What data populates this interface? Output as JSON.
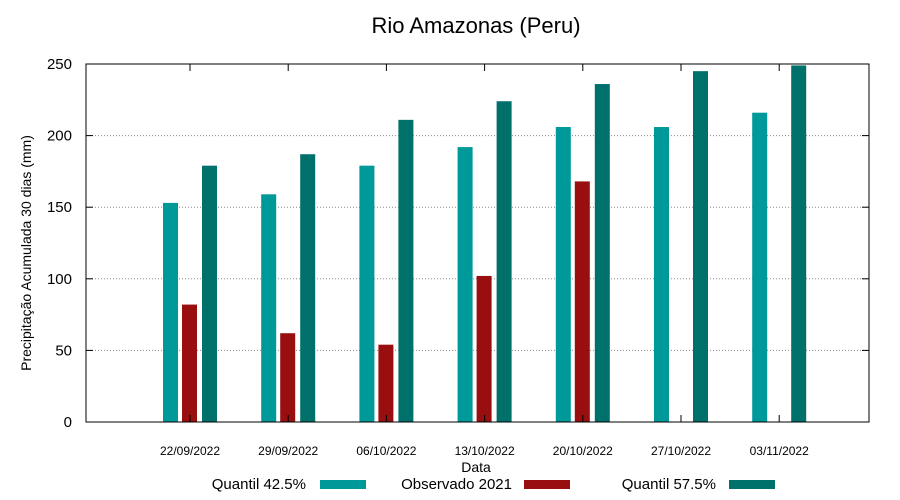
{
  "chart_data": {
    "type": "bar",
    "title": "Rio Amazonas (Peru)",
    "xlabel": "Data",
    "ylabel": "Precipitação Acumulada 30 dias (mm)",
    "ylim": [
      0,
      250
    ],
    "yticks": [
      0,
      50,
      100,
      150,
      200,
      250
    ],
    "grid": true,
    "legend_position": "bottom",
    "categories": [
      "22/09/2022",
      "29/09/2022",
      "06/10/2022",
      "13/10/2022",
      "20/10/2022",
      "27/10/2022",
      "03/11/2022"
    ],
    "series": [
      {
        "name": "Quantil 42.5%",
        "color": "#009999",
        "values": [
          153,
          159,
          179,
          192,
          206,
          206,
          216
        ]
      },
      {
        "name": "Observado 2021",
        "color": "#990f0f",
        "values": [
          82,
          62,
          54,
          102,
          168,
          null,
          null
        ]
      },
      {
        "name": "Quantil 57.5%",
        "color": "#00706b",
        "values": [
          179,
          187,
          211,
          224,
          236,
          245,
          249
        ]
      }
    ]
  }
}
